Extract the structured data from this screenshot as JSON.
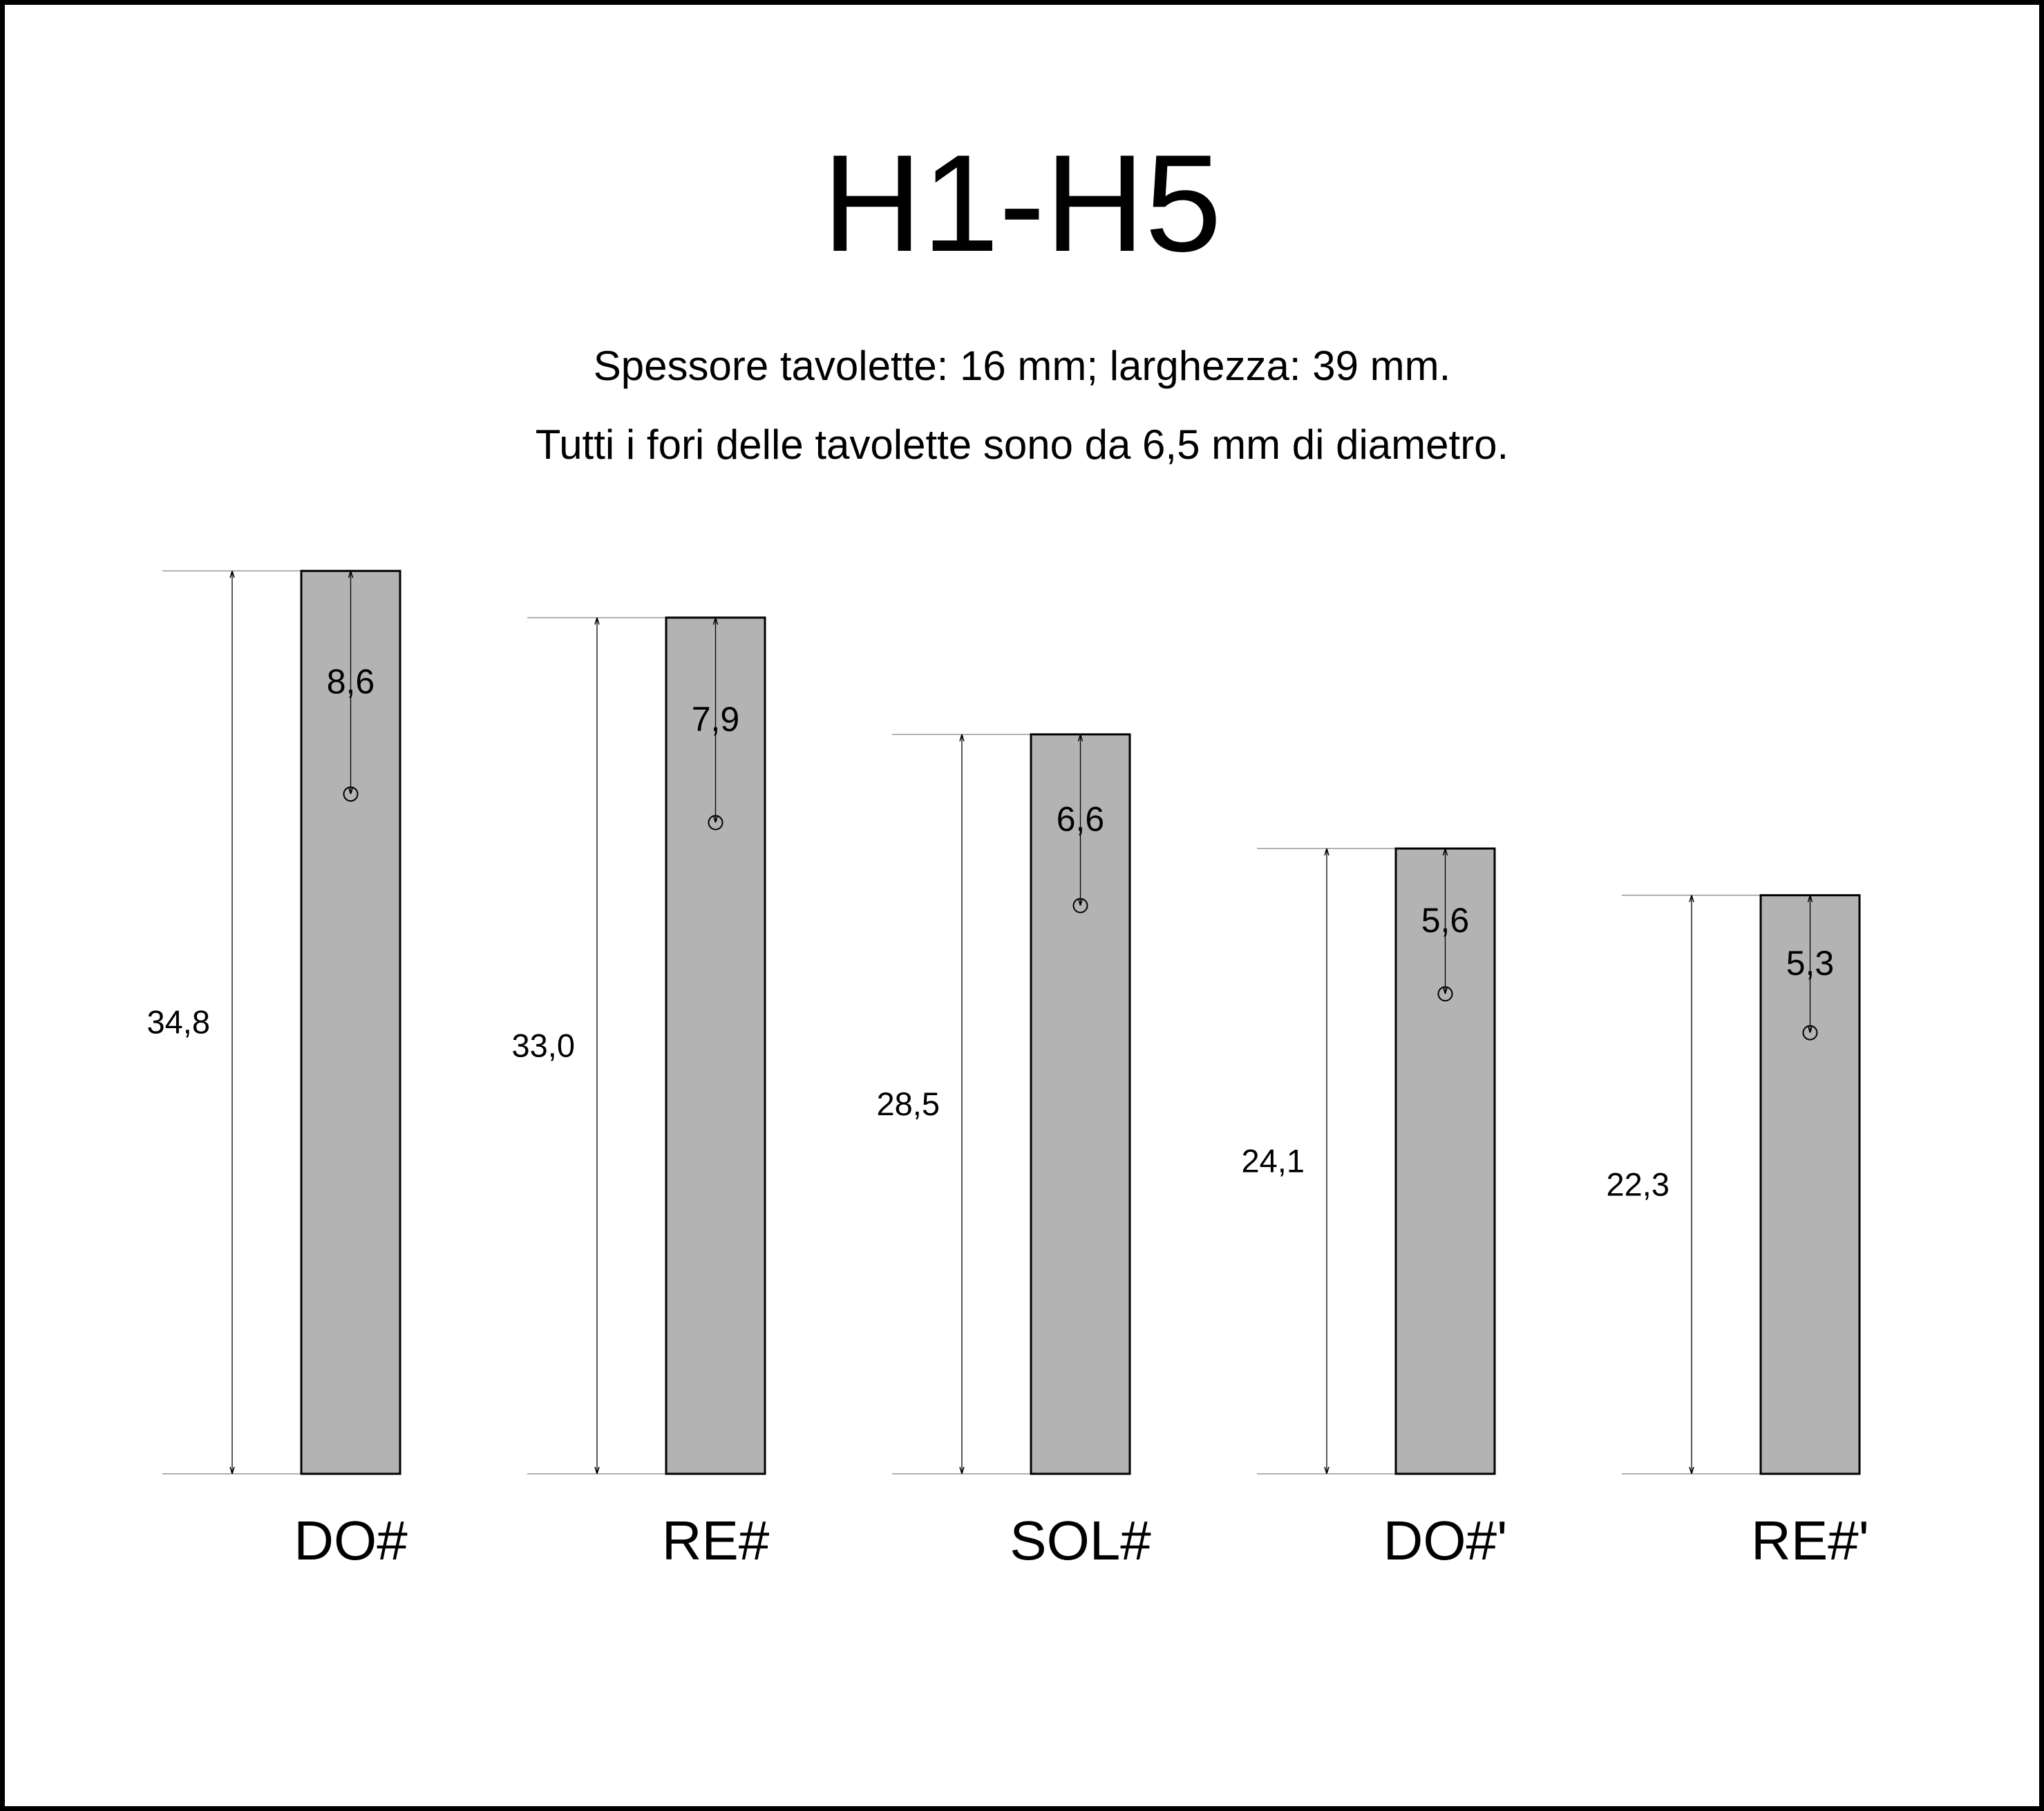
{
  "title": "H1-H5",
  "notes": [
    "Spessore tavolette: 16 mm; larghezza: 39 mm.",
    "Tutti i fori delle tavolette sono da 6,5 mm di diametro."
  ],
  "colors": {
    "bar_fill": "#b3b3b3",
    "stroke": "#000000",
    "extension_line": "#999999",
    "background": "#ffffff"
  },
  "diagram_data": {
    "unit_note": "mm",
    "bars": [
      {
        "note": "DO#",
        "length": 34.8,
        "length_label": "34,8",
        "hole_offset": 8.6,
        "hole_label": "8,6"
      },
      {
        "note": "RE#",
        "length": 33.0,
        "length_label": "33,0",
        "hole_offset": 7.9,
        "hole_label": "7,9"
      },
      {
        "note": "SOL#",
        "length": 28.5,
        "length_label": "28,5",
        "hole_offset": 6.6,
        "hole_label": "6,6"
      },
      {
        "note": "DO#'",
        "length": 24.1,
        "length_label": "24,1",
        "hole_offset": 5.6,
        "hole_label": "5,6"
      },
      {
        "note": "RE#'",
        "length": 22.3,
        "length_label": "22,3",
        "hole_offset": 5.3,
        "hole_label": "5,3"
      }
    ]
  }
}
